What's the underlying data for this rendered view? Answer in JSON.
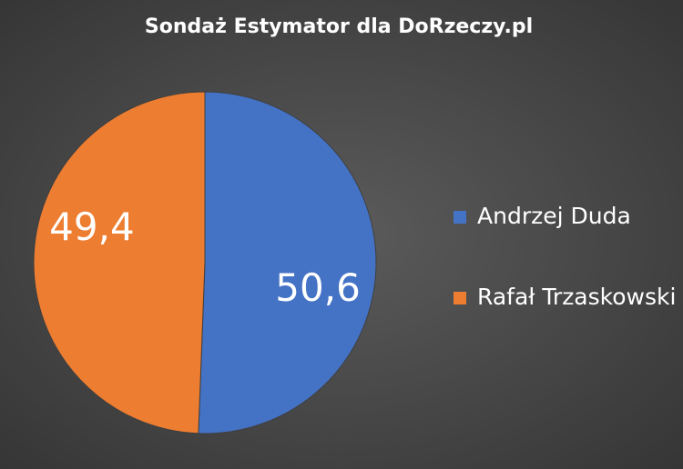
{
  "chart_data": {
    "type": "pie",
    "title": "Sondaż Estymator dla DoRzeczy.pl",
    "categories": [
      "Andrzej Duda",
      "Rafał Trzaskowski"
    ],
    "values": [
      50.6,
      49.4
    ],
    "value_labels": [
      "50,6",
      "49,4"
    ],
    "colors": [
      "#4472c4",
      "#ed7d31"
    ],
    "legend": "right"
  }
}
